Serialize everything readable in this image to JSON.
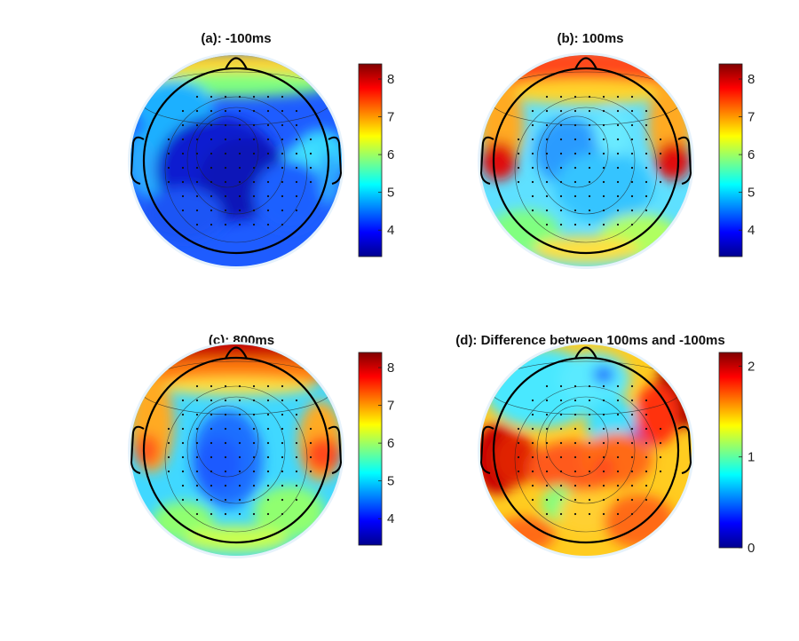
{
  "chart_data": [
    {
      "type": "heatmap",
      "subtype": "topographic-head-map",
      "title": "(a): -100ms",
      "colorbar": {
        "min": 3.3,
        "max": 8.4,
        "ticks": [
          4,
          5,
          6,
          7,
          8
        ]
      },
      "colormap": [
        "#00008f",
        "#0000ff",
        "#0080ff",
        "#00ffff",
        "#80ff80",
        "#ffff00",
        "#ff8000",
        "#ff0000",
        "#800000"
      ]
    },
    {
      "type": "heatmap",
      "subtype": "topographic-head-map",
      "title": "(b): 100ms",
      "colorbar": {
        "min": 3.3,
        "max": 8.4,
        "ticks": [
          4,
          5,
          6,
          7,
          8
        ]
      },
      "colormap": [
        "#00008f",
        "#0000ff",
        "#0080ff",
        "#00ffff",
        "#80ff80",
        "#ffff00",
        "#ff8000",
        "#ff0000",
        "#800000"
      ]
    },
    {
      "type": "heatmap",
      "subtype": "topographic-head-map",
      "title": "(c): 800ms",
      "colorbar": {
        "min": 3.3,
        "max": 8.4,
        "ticks": [
          4,
          5,
          6,
          7,
          8
        ]
      },
      "colormap": [
        "#00008f",
        "#0000ff",
        "#0080ff",
        "#00ffff",
        "#80ff80",
        "#ffff00",
        "#ff8000",
        "#ff0000",
        "#800000"
      ]
    },
    {
      "type": "heatmap",
      "subtype": "topographic-head-map",
      "title": "(d): Difference between 100ms and -100ms",
      "colorbar": {
        "min": 0,
        "max": 2.15,
        "ticks": [
          0,
          1,
          2
        ]
      },
      "colormap": [
        "#00008f",
        "#0000ff",
        "#0080ff",
        "#00ffff",
        "#80ff80",
        "#ffff00",
        "#ff8000",
        "#ff0000",
        "#800000"
      ]
    }
  ]
}
